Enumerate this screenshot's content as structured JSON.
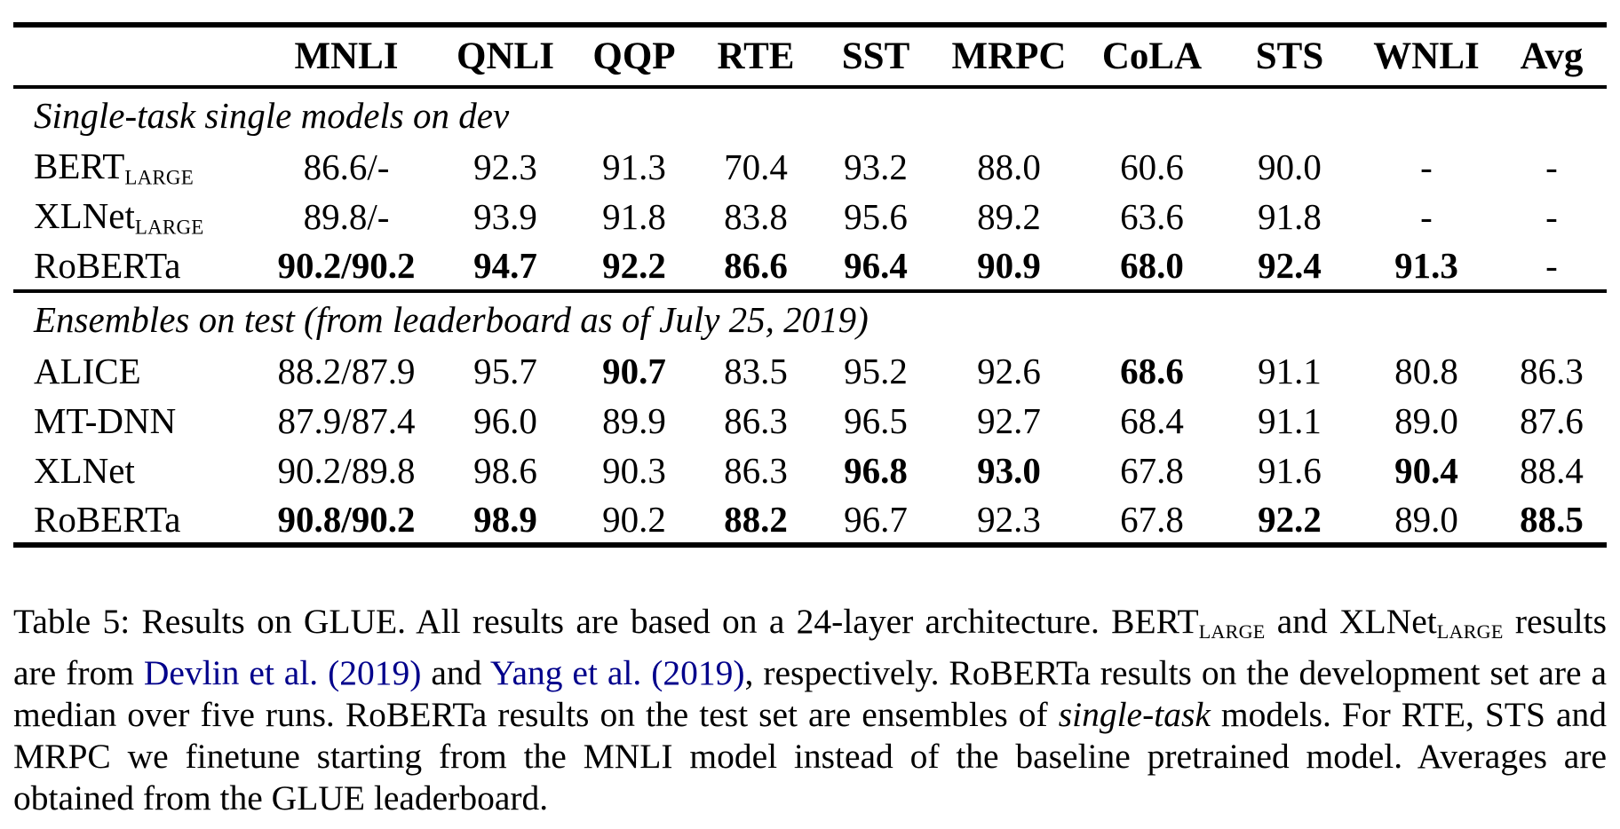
{
  "colors": {
    "text": "#000000",
    "background": "#ffffff",
    "citation_link": "#00008b"
  },
  "table": {
    "columns": [
      "MNLI",
      "QNLI",
      "QQP",
      "RTE",
      "SST",
      "MRPC",
      "CoLA",
      "STS",
      "WNLI",
      "Avg"
    ],
    "sections": [
      {
        "label": "Single-task single models on dev",
        "rows": [
          {
            "model": "BERT",
            "model_sub": "LARGE",
            "cells": [
              {
                "v": "86.6/-",
                "b": false
              },
              {
                "v": "92.3",
                "b": false
              },
              {
                "v": "91.3",
                "b": false
              },
              {
                "v": "70.4",
                "b": false
              },
              {
                "v": "93.2",
                "b": false
              },
              {
                "v": "88.0",
                "b": false
              },
              {
                "v": "60.6",
                "b": false
              },
              {
                "v": "90.0",
                "b": false
              },
              {
                "v": "-",
                "b": false
              },
              {
                "v": "-",
                "b": false
              }
            ]
          },
          {
            "model": "XLNet",
            "model_sub": "LARGE",
            "cells": [
              {
                "v": "89.8/-",
                "b": false
              },
              {
                "v": "93.9",
                "b": false
              },
              {
                "v": "91.8",
                "b": false
              },
              {
                "v": "83.8",
                "b": false
              },
              {
                "v": "95.6",
                "b": false
              },
              {
                "v": "89.2",
                "b": false
              },
              {
                "v": "63.6",
                "b": false
              },
              {
                "v": "91.8",
                "b": false
              },
              {
                "v": "-",
                "b": false
              },
              {
                "v": "-",
                "b": false
              }
            ]
          },
          {
            "model": "RoBERTa",
            "model_sub": "",
            "cells": [
              {
                "v": "90.2/90.2",
                "b": true
              },
              {
                "v": "94.7",
                "b": true
              },
              {
                "v": "92.2",
                "b": true
              },
              {
                "v": "86.6",
                "b": true
              },
              {
                "v": "96.4",
                "b": true
              },
              {
                "v": "90.9",
                "b": true
              },
              {
                "v": "68.0",
                "b": true
              },
              {
                "v": "92.4",
                "b": true
              },
              {
                "v": "91.3",
                "b": true
              },
              {
                "v": "-",
                "b": false
              }
            ]
          }
        ]
      },
      {
        "label": "Ensembles on test (from leaderboard as of July 25, 2019)",
        "rows": [
          {
            "model": "ALICE",
            "model_sub": "",
            "cells": [
              {
                "v": "88.2/87.9",
                "b": false
              },
              {
                "v": "95.7",
                "b": false
              },
              {
                "v": "90.7",
                "b": true
              },
              {
                "v": "83.5",
                "b": false
              },
              {
                "v": "95.2",
                "b": false
              },
              {
                "v": "92.6",
                "b": false
              },
              {
                "v": "68.6",
                "b": true
              },
              {
                "v": "91.1",
                "b": false
              },
              {
                "v": "80.8",
                "b": false
              },
              {
                "v": "86.3",
                "b": false
              }
            ]
          },
          {
            "model": "MT-DNN",
            "model_sub": "",
            "cells": [
              {
                "v": "87.9/87.4",
                "b": false
              },
              {
                "v": "96.0",
                "b": false
              },
              {
                "v": "89.9",
                "b": false
              },
              {
                "v": "86.3",
                "b": false
              },
              {
                "v": "96.5",
                "b": false
              },
              {
                "v": "92.7",
                "b": false
              },
              {
                "v": "68.4",
                "b": false
              },
              {
                "v": "91.1",
                "b": false
              },
              {
                "v": "89.0",
                "b": false
              },
              {
                "v": "87.6",
                "b": false
              }
            ]
          },
          {
            "model": "XLNet",
            "model_sub": "",
            "cells": [
              {
                "v": "90.2/89.8",
                "b": false
              },
              {
                "v": "98.6",
                "b": false
              },
              {
                "v": "90.3",
                "b": false
              },
              {
                "v": "86.3",
                "b": false
              },
              {
                "v": "96.8",
                "b": true
              },
              {
                "v": "93.0",
                "b": true
              },
              {
                "v": "67.8",
                "b": false
              },
              {
                "v": "91.6",
                "b": false
              },
              {
                "v": "90.4",
                "b": true
              },
              {
                "v": "88.4",
                "b": false
              }
            ]
          },
          {
            "model": "RoBERTa",
            "model_sub": "",
            "cells": [
              {
                "v": "90.8/90.2",
                "b": true
              },
              {
                "v": "98.9",
                "b": true
              },
              {
                "v": "90.2",
                "b": false
              },
              {
                "v": "88.2",
                "b": true
              },
              {
                "v": "96.7",
                "b": false
              },
              {
                "v": "92.3",
                "b": false
              },
              {
                "v": "67.8",
                "b": false
              },
              {
                "v": "92.2",
                "b": true
              },
              {
                "v": "89.0",
                "b": false
              },
              {
                "v": "88.5",
                "b": true
              }
            ]
          }
        ]
      }
    ]
  },
  "caption": {
    "segments": [
      {
        "text": "Table 5: Results on GLUE. All results are based on a 24-layer architecture. BERT",
        "style": "plain"
      },
      {
        "text": "LARGE",
        "style": "subscript"
      },
      {
        "text": " and XLNet",
        "style": "plain"
      },
      {
        "text": "LARGE",
        "style": "subscript"
      },
      {
        "text": " results are from ",
        "style": "plain"
      },
      {
        "text": "Devlin et al. (2019)",
        "style": "link"
      },
      {
        "text": " and ",
        "style": "plain"
      },
      {
        "text": "Yang et al. (2019)",
        "style": "link"
      },
      {
        "text": ", respectively. RoBERTa results on the development set are a median over five runs. RoBERTa results on the test set are ensembles of ",
        "style": "plain"
      },
      {
        "text": "single-task",
        "style": "italic"
      },
      {
        "text": " models. For RTE, STS and MRPC we finetune starting from the MNLI model instead of the baseline pretrained model. Averages are obtained from the GLUE leaderboard.",
        "style": "plain"
      }
    ]
  }
}
